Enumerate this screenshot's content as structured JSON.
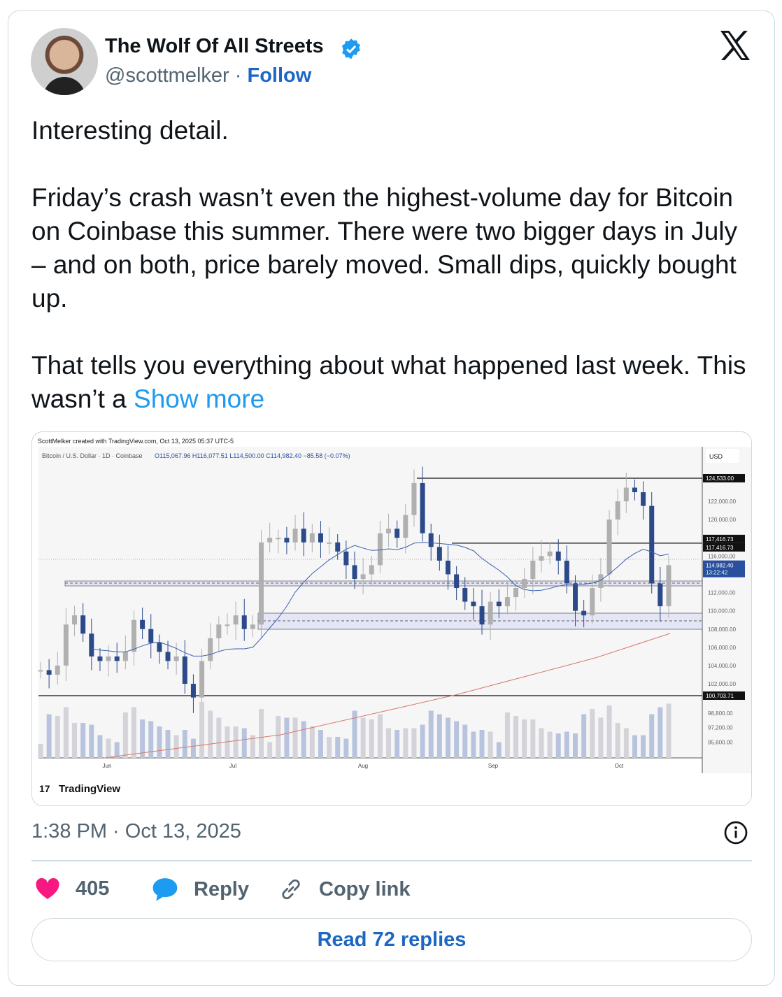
{
  "author": {
    "name": "The Wolf Of All Streets",
    "handle": "@scottmelker",
    "separator": " · ",
    "follow": "Follow"
  },
  "body": {
    "text": "Interesting detail.\n\nFriday’s crash wasn’t even the highest-volume day for Bitcoin on Coinbase this summer. There were two bigger days in July – and on both, price barely moved. Small dips, quickly bought up.\n\nThat tells you everything about what happened last week. This wasn’t a ",
    "show_more": "Show more"
  },
  "chart_image": {
    "credit": "ScottMelker created with TradingView.com, Oct 13, 2025 05:37 UTC-5",
    "symbol": "Bitcoin / U.S. Dollar · 1D · Coinbase",
    "ohlc": "O115,067.96  H116,077.51  L114,500.00  C114,982.40  −85.58 (−0.07%)",
    "currency": "USD",
    "logo": "TradingView",
    "price_ticks": [
      122000,
      120000,
      116000,
      112000,
      110000,
      108000,
      106000,
      104000,
      102000,
      98800,
      97200,
      95600
    ],
    "price_tick_labels": [
      "122,000.00",
      "120,000.00",
      "116,000.00",
      "112,000.00",
      "110,000.00",
      "108,000.00",
      "106,000.00",
      "104,000.00",
      "102,000.00",
      "98,800.00",
      "97,200.00",
      "95,600.00"
    ],
    "levels": [
      {
        "value": 124533,
        "label": "124,533.00"
      },
      {
        "value": 117416.73,
        "label": "117,416.73"
      },
      {
        "value": 100703.71,
        "label": "100,703.71"
      }
    ],
    "current": {
      "label": "114,982.40",
      "countdown": "13:22:42",
      "color": "#2a4f9e"
    },
    "months": [
      "Jun",
      "Jul",
      "Aug",
      "Sep",
      "Oct"
    ],
    "closes": [
      103500,
      103000,
      104000,
      108500,
      109500,
      107500,
      105000,
      104500,
      105000,
      104500,
      105500,
      109000,
      108000,
      106500,
      105500,
      104500,
      105000,
      102000,
      100500,
      104500,
      107000,
      108500,
      108500,
      109500,
      108000,
      108500,
      117500,
      118000,
      118000,
      117500,
      119000,
      117500,
      118500,
      117500,
      117500,
      116500,
      115000,
      113500,
      114000,
      115000,
      118500,
      119000,
      118000,
      120500,
      124000,
      118500,
      117000,
      115500,
      114000,
      112500,
      111000,
      110500,
      108500,
      111000,
      110500,
      111500,
      112500,
      113500,
      115500,
      116000,
      116500,
      115500,
      113000,
      110000,
      109500,
      112500,
      114000,
      120000,
      122000,
      123500,
      123000,
      121500,
      113000,
      110500,
      115000
    ],
    "colors": {
      "candle_up": "#b0b0b0",
      "candle_down": "#2c4a8a",
      "ma_short": "#3a5fb0",
      "ma_long": "#d9776a"
    }
  },
  "footer": {
    "time": "1:38 PM · Oct 13, 2025",
    "likes": "405",
    "reply": "Reply",
    "copy_link": "Copy link",
    "read_replies": "Read 72 replies"
  },
  "colors": {
    "like": "#f91880",
    "reply": "#1d9bf0",
    "link": "#1d67c4"
  }
}
